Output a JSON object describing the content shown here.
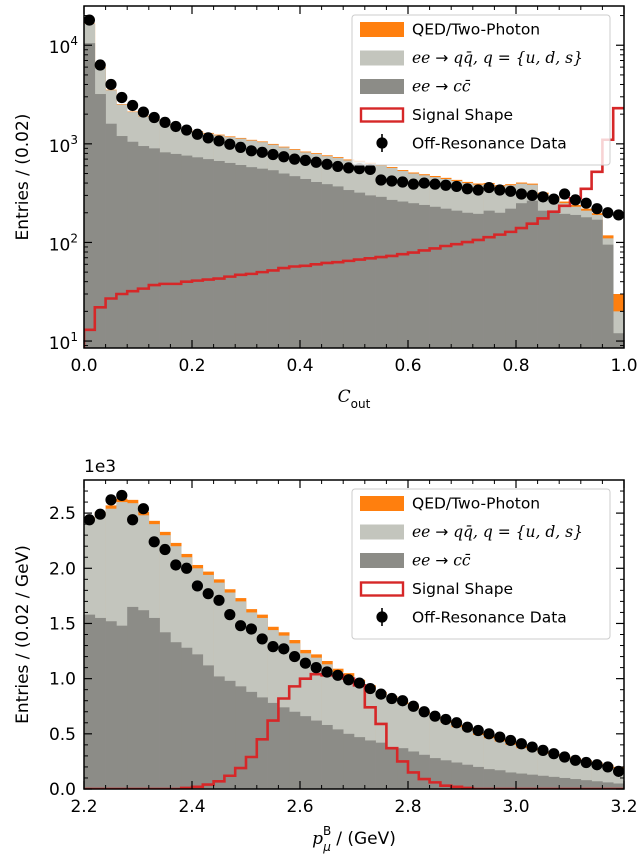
{
  "chart_data": [
    {
      "type": "histogram",
      "stacked": true,
      "xlabel": "C",
      "xlabel_sub": "out",
      "ylabel": "Entries / (0.02)",
      "yscale": "log",
      "xlim": [
        0.0,
        1.0
      ],
      "ylim": [
        8.5,
        25000
      ],
      "x_ticks": [
        "0.0",
        "0.2",
        "0.4",
        "0.6",
        "0.8",
        "1.0"
      ],
      "y_ticks": [
        {
          "base": "10",
          "exp": "1"
        },
        {
          "base": "10",
          "exp": "2"
        },
        {
          "base": "10",
          "exp": "3"
        },
        {
          "base": "10",
          "exp": "4"
        }
      ],
      "legend_position": "upper right",
      "bin_edges_start": 0.0,
      "bin_width": 0.02,
      "series": [
        {
          "name": "ee → cc̄",
          "kind": "stacked-fill",
          "color": "#8c8c87",
          "values": [
            10500,
            3200,
            1600,
            1200,
            1050,
            950,
            900,
            820,
            790,
            760,
            730,
            700,
            670,
            640,
            610,
            580,
            560,
            540,
            500,
            470,
            440,
            410,
            390,
            370,
            340,
            320,
            300,
            290,
            270,
            260,
            250,
            240,
            230,
            220,
            210,
            200,
            195,
            210,
            200,
            220,
            250,
            265,
            210,
            200,
            195,
            190,
            180,
            170,
            95,
            12
          ]
        },
        {
          "name": "ee → qq̄, q = {u, d, s}",
          "kind": "stacked-fill",
          "color": "#c3c5bd",
          "values": [
            6000,
            2700,
            1900,
            1300,
            1050,
            950,
            850,
            750,
            680,
            630,
            600,
            570,
            550,
            530,
            520,
            500,
            480,
            440,
            420,
            400,
            380,
            380,
            360,
            350,
            340,
            340,
            330,
            310,
            300,
            270,
            250,
            240,
            230,
            220,
            210,
            200,
            190,
            180,
            170,
            160,
            145,
            120,
            100,
            80,
            55,
            40,
            30,
            20,
            15,
            8
          ]
        },
        {
          "name": "QED/Two-Photon",
          "kind": "stacked-fill",
          "color": "#ff7f0e",
          "values": [
            120,
            60,
            40,
            30,
            25,
            25,
            20,
            20,
            20,
            20,
            20,
            20,
            20,
            20,
            18,
            18,
            18,
            18,
            16,
            15,
            15,
            15,
            15,
            14,
            14,
            14,
            13,
            13,
            12,
            12,
            12,
            12,
            12,
            12,
            11,
            11,
            11,
            11,
            11,
            10,
            10,
            10,
            10,
            10,
            10,
            10,
            10,
            8,
            8,
            10
          ]
        },
        {
          "name": "Signal Shape",
          "kind": "step",
          "color": "#d62728",
          "values": [
            13,
            22,
            27,
            30,
            32,
            34,
            37,
            38,
            38,
            40,
            41,
            42,
            43,
            45,
            47,
            48,
            50,
            52,
            55,
            57,
            58,
            60,
            62,
            63,
            65,
            67,
            69,
            71,
            73,
            76,
            79,
            83,
            87,
            92,
            96,
            101,
            106,
            113,
            120,
            128,
            140,
            155,
            175,
            205,
            235,
            280,
            350,
            520,
            1100,
            2300
          ]
        },
        {
          "name": "Off-Resonance Data",
          "kind": "points",
          "color": "#000000",
          "x": [
            0.01,
            0.03,
            0.05,
            0.07,
            0.09,
            0.11,
            0.13,
            0.15,
            0.17,
            0.19,
            0.21,
            0.23,
            0.25,
            0.27,
            0.29,
            0.31,
            0.33,
            0.35,
            0.37,
            0.39,
            0.41,
            0.43,
            0.45,
            0.47,
            0.49,
            0.51,
            0.53,
            0.55,
            0.57,
            0.59,
            0.61,
            0.63,
            0.65,
            0.67,
            0.69,
            0.71,
            0.73,
            0.75,
            0.77,
            0.79,
            0.81,
            0.83,
            0.85,
            0.87,
            0.89,
            0.91,
            0.93,
            0.95,
            0.97,
            0.99
          ],
          "values": [
            18000,
            6300,
            4000,
            2950,
            2450,
            2100,
            1850,
            1650,
            1500,
            1380,
            1250,
            1150,
            1070,
            990,
            920,
            850,
            820,
            780,
            740,
            700,
            680,
            650,
            620,
            590,
            570,
            560,
            550,
            430,
            420,
            410,
            390,
            400,
            390,
            380,
            370,
            350,
            340,
            360,
            340,
            330,
            310,
            300,
            290,
            275,
            310,
            270,
            250,
            220,
            200,
            190
          ]
        }
      ]
    },
    {
      "type": "histogram",
      "stacked": true,
      "xlabel": "p",
      "xlabel_sub": "μ",
      "xlabel_sup": "B",
      "xlabel_suffix": " / (GeV)",
      "ylabel": "Entries / (0.02 / GeV)",
      "offset_text": "1e3",
      "yscale": "linear",
      "xlim": [
        2.2,
        3.2
      ],
      "ylim": [
        0,
        2.8
      ],
      "x_ticks": [
        "2.2",
        "2.4",
        "2.6",
        "2.8",
        "3.0",
        "3.2"
      ],
      "y_ticks": [
        "0.0",
        "0.5",
        "1.0",
        "1.5",
        "2.0",
        "2.5"
      ],
      "legend_position": "upper right",
      "bin_edges_start": 2.2,
      "bin_width": 0.02,
      "series": [
        {
          "name": "ee → cc̄",
          "kind": "stacked-fill",
          "color": "#8c8c87",
          "values": [
            1.58,
            1.55,
            1.52,
            1.48,
            1.65,
            1.62,
            1.55,
            1.42,
            1.33,
            1.28,
            1.22,
            1.12,
            1.02,
            0.98,
            0.93,
            0.88,
            0.83,
            0.78,
            0.74,
            0.7,
            0.66,
            0.62,
            0.58,
            0.54,
            0.5,
            0.47,
            0.44,
            0.42,
            0.38,
            0.37,
            0.34,
            0.31,
            0.28,
            0.26,
            0.24,
            0.22,
            0.2,
            0.18,
            0.17,
            0.15,
            0.14,
            0.13,
            0.12,
            0.11,
            0.1,
            0.09,
            0.08,
            0.07,
            0.06,
            0.05
          ]
        },
        {
          "name": "ee → qq̄, q = {u, d, s}",
          "kind": "stacked-fill",
          "color": "#c3c5bd",
          "values": [
            0.85,
            0.93,
            1.02,
            1.12,
            0.94,
            0.86,
            0.85,
            0.88,
            0.87,
            0.82,
            0.78,
            0.82,
            0.85,
            0.8,
            0.77,
            0.72,
            0.72,
            0.66,
            0.65,
            0.62,
            0.57,
            0.57,
            0.55,
            0.52,
            0.52,
            0.5,
            0.48,
            0.44,
            0.44,
            0.4,
            0.39,
            0.37,
            0.36,
            0.34,
            0.32,
            0.31,
            0.29,
            0.28,
            0.26,
            0.25,
            0.23,
            0.22,
            0.2,
            0.19,
            0.18,
            0.17,
            0.16,
            0.15,
            0.14,
            0.13
          ]
        },
        {
          "name": "QED/Two-Photon",
          "kind": "stacked-fill",
          "color": "#ff7f0e",
          "values": [
            0.03,
            0.03,
            0.03,
            0.03,
            0.03,
            0.03,
            0.03,
            0.03,
            0.03,
            0.03,
            0.03,
            0.03,
            0.03,
            0.03,
            0.03,
            0.03,
            0.03,
            0.03,
            0.03,
            0.03,
            0.03,
            0.03,
            0.03,
            0.03,
            0.03,
            0.02,
            0.02,
            0.02,
            0.02,
            0.02,
            0.02,
            0.02,
            0.02,
            0.02,
            0.02,
            0.02,
            0.02,
            0.02,
            0.02,
            0.02,
            0.02,
            0.02,
            0.02,
            0.02,
            0.02,
            0.02,
            0.02,
            0.02,
            0.02,
            0.02
          ]
        },
        {
          "name": "Signal Shape",
          "kind": "step",
          "color": "#d62728",
          "values": [
            0.0,
            0.0,
            0.0,
            0.0,
            0.0,
            0.0,
            0.0,
            0.0,
            0.0,
            0.01,
            0.02,
            0.04,
            0.07,
            0.12,
            0.19,
            0.29,
            0.45,
            0.62,
            0.82,
            0.93,
            1.0,
            1.04,
            1.03,
            1.03,
            1.0,
            0.94,
            0.74,
            0.59,
            0.37,
            0.25,
            0.15,
            0.09,
            0.06,
            0.03,
            0.02,
            0.01,
            0.0,
            0.0,
            0.0,
            0.0,
            0.0,
            0.0,
            0.0,
            0.0,
            0.0,
            0.0,
            0.0,
            0.0,
            0.0,
            0.0
          ]
        },
        {
          "name": "Off-Resonance Data",
          "kind": "points",
          "color": "#000000",
          "x": [
            2.21,
            2.23,
            2.25,
            2.27,
            2.29,
            2.31,
            2.33,
            2.35,
            2.37,
            2.39,
            2.41,
            2.43,
            2.45,
            2.47,
            2.49,
            2.51,
            2.53,
            2.55,
            2.57,
            2.59,
            2.61,
            2.63,
            2.65,
            2.67,
            2.69,
            2.71,
            2.73,
            2.75,
            2.77,
            2.79,
            2.81,
            2.83,
            2.85,
            2.87,
            2.89,
            2.91,
            2.93,
            2.95,
            2.97,
            2.99,
            3.01,
            3.03,
            3.05,
            3.07,
            3.09,
            3.11,
            3.13,
            3.15,
            3.17,
            3.19
          ],
          "values": [
            2.44,
            2.49,
            2.62,
            2.66,
            2.44,
            2.54,
            2.24,
            2.17,
            2.03,
            2.0,
            1.84,
            1.77,
            1.71,
            1.58,
            1.48,
            1.45,
            1.36,
            1.29,
            1.27,
            1.2,
            1.14,
            1.1,
            1.06,
            1.03,
            0.99,
            0.96,
            0.91,
            0.86,
            0.82,
            0.8,
            0.75,
            0.7,
            0.66,
            0.63,
            0.6,
            0.56,
            0.53,
            0.5,
            0.47,
            0.44,
            0.41,
            0.38,
            0.35,
            0.32,
            0.29,
            0.26,
            0.24,
            0.22,
            0.2,
            0.16
          ]
        }
      ]
    }
  ]
}
